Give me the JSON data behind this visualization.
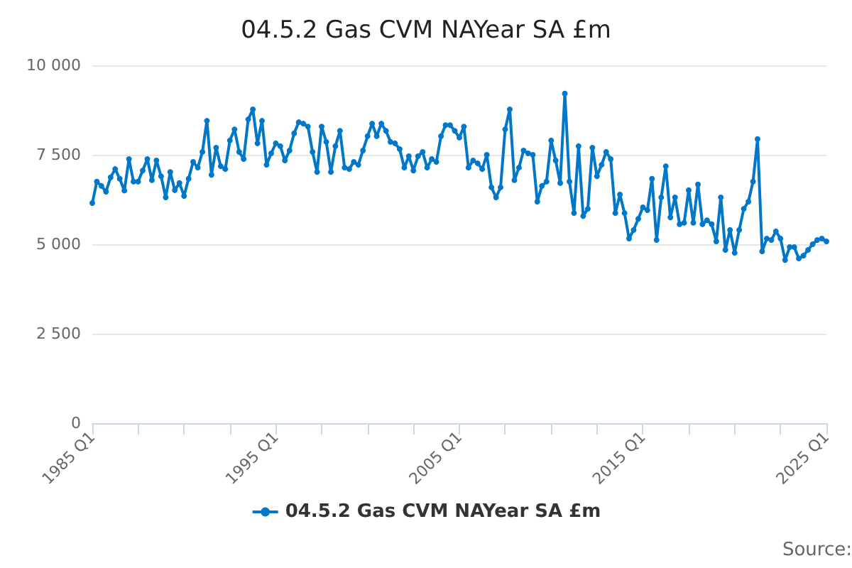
{
  "chart_data": {
    "type": "line",
    "title": "04.5.2 Gas CVM NAYear SA £m",
    "x": [
      "1985-01",
      "1985-04",
      "1985-07",
      "1985-10",
      "1986-01",
      "1986-04",
      "1986-07",
      "1986-10",
      "1987-01",
      "1987-04",
      "1987-07",
      "1987-10",
      "1988-01",
      "1988-04",
      "1988-07",
      "1988-10",
      "1989-01",
      "1989-04",
      "1989-07",
      "1989-10",
      "1990-01",
      "1990-04",
      "1990-07",
      "1990-10",
      "1991-01",
      "1991-04",
      "1991-07",
      "1991-10",
      "1992-01",
      "1992-04",
      "1992-07",
      "1992-10",
      "1993-01",
      "1993-04",
      "1993-07",
      "1993-10",
      "1994-01",
      "1994-04",
      "1994-07",
      "1994-10",
      "1995-01",
      "1995-04",
      "1995-07",
      "1995-10",
      "1996-01",
      "1996-04",
      "1996-07",
      "1996-10",
      "1997-01",
      "1997-04",
      "1997-07",
      "1997-10",
      "1998-01",
      "1998-04",
      "1998-07",
      "1998-10",
      "1999-01",
      "1999-04",
      "1999-07",
      "1999-10",
      "2000-01",
      "2000-04",
      "2000-07",
      "2000-10",
      "2001-01",
      "2001-04",
      "2001-07",
      "2001-10",
      "2002-01",
      "2002-04",
      "2002-07",
      "2002-10",
      "2003-01",
      "2003-04",
      "2003-07",
      "2003-10",
      "2004-01",
      "2004-04",
      "2004-07",
      "2004-10",
      "2005-01",
      "2005-04",
      "2005-07",
      "2005-10",
      "2006-01",
      "2006-04",
      "2006-07",
      "2006-10",
      "2007-01",
      "2007-04",
      "2007-07",
      "2007-10",
      "2008-01",
      "2008-04",
      "2008-07",
      "2008-10",
      "2009-01",
      "2009-04",
      "2009-07",
      "2009-10",
      "2010-01",
      "2010-04",
      "2010-07",
      "2010-10",
      "2011-01",
      "2011-04",
      "2011-07",
      "2011-10",
      "2012-01",
      "2012-04",
      "2012-07",
      "2012-10",
      "2013-01",
      "2013-04",
      "2013-07",
      "2013-10",
      "2014-01",
      "2014-04",
      "2014-07",
      "2014-10",
      "2015-01",
      "2015-04",
      "2015-07",
      "2015-10",
      "2016-01",
      "2016-04",
      "2016-07",
      "2016-10",
      "2017-01",
      "2017-04",
      "2017-07",
      "2017-10",
      "2018-01",
      "2018-04",
      "2018-07",
      "2018-10",
      "2019-01",
      "2019-04",
      "2019-07",
      "2019-10",
      "2020-01",
      "2020-04",
      "2020-07",
      "2020-10",
      "2021-01",
      "2021-04",
      "2021-07",
      "2021-10",
      "2022-01",
      "2022-04",
      "2022-07",
      "2022-10",
      "2023-01",
      "2023-04",
      "2023-07",
      "2023-10",
      "2024-01",
      "2024-04",
      "2024-07",
      "2024-10",
      "2025-01"
    ],
    "series": [
      {
        "name": "04.5.2 Gas CVM NAYear SA £m",
        "color": "#0077c8",
        "values": [
          6150,
          6750,
          6630,
          6470,
          6870,
          7100,
          6830,
          6500,
          7380,
          6750,
          6750,
          7060,
          7380,
          6790,
          7340,
          6900,
          6310,
          7020,
          6510,
          6710,
          6350,
          6830,
          7300,
          7140,
          7580,
          8450,
          6940,
          7700,
          7180,
          7100,
          7900,
          8210,
          7580,
          7380,
          8490,
          8770,
          7820,
          8450,
          7220,
          7540,
          7820,
          7740,
          7340,
          7620,
          8100,
          8410,
          8370,
          8290,
          7580,
          7020,
          8290,
          7860,
          7020,
          7740,
          8170,
          7140,
          7100,
          7300,
          7220,
          7620,
          8020,
          8370,
          8020,
          8370,
          8170,
          7860,
          7820,
          7660,
          7140,
          7460,
          7060,
          7460,
          7580,
          7140,
          7380,
          7300,
          8020,
          8330,
          8330,
          8170,
          7980,
          8290,
          7140,
          7340,
          7260,
          7100,
          7500,
          6590,
          6310,
          6590,
          8210,
          8770,
          6790,
          7140,
          7620,
          7540,
          7500,
          6190,
          6630,
          6750,
          7900,
          7340,
          6710,
          9210,
          6750,
          5870,
          7740,
          5790,
          5990,
          7700,
          6900,
          7220,
          7580,
          7380,
          5870,
          6390,
          5870,
          5160,
          5400,
          5710,
          6030,
          5950,
          6830,
          5120,
          6310,
          7180,
          5750,
          6310,
          5560,
          5600,
          6510,
          5600,
          6670,
          5560,
          5670,
          5560,
          5080,
          6310,
          4840,
          5400,
          4760,
          5400,
          5990,
          6190,
          6750,
          7940,
          4800,
          5160,
          5120,
          5360,
          5160,
          4560,
          4920,
          4920,
          4600,
          4680,
          4840,
          5000,
          5120,
          5160,
          5080
        ]
      }
    ],
    "xlim": [
      "1985-01",
      "2025-01"
    ],
    "xticks": [
      {
        "value": "1985-01",
        "label": "1985 Q1"
      },
      {
        "value": "1987-07",
        "label": null
      },
      {
        "value": "1990-01",
        "label": null
      },
      {
        "value": "1992-07",
        "label": null
      },
      {
        "value": "1995-01",
        "label": "1995 Q1"
      },
      {
        "value": "1997-07",
        "label": null
      },
      {
        "value": "2000-01",
        "label": null
      },
      {
        "value": "2002-07",
        "label": null
      },
      {
        "value": "2005-01",
        "label": "2005 Q1"
      },
      {
        "value": "2007-07",
        "label": null
      },
      {
        "value": "2010-01",
        "label": null
      },
      {
        "value": "2012-07",
        "label": null
      },
      {
        "value": "2015-01",
        "label": "2015 Q1"
      },
      {
        "value": "2017-07",
        "label": null
      },
      {
        "value": "2020-01",
        "label": null
      },
      {
        "value": "2022-07",
        "label": null
      },
      {
        "value": "2025-01",
        "label": "2025 Q1"
      }
    ],
    "ylim": [
      0,
      10000
    ],
    "yticks": [
      0,
      {
        "value": 2500,
        "label": "2 500"
      },
      {
        "value": 5000,
        "label": "5 000"
      },
      {
        "value": 7500,
        "label": "7 500"
      },
      {
        "value": 10000,
        "label": "10 000"
      }
    ],
    "grid": "y",
    "legend": "bottom",
    "marker": "circle",
    "line_style": "solid",
    "annotations": [
      "Source:"
    ]
  }
}
